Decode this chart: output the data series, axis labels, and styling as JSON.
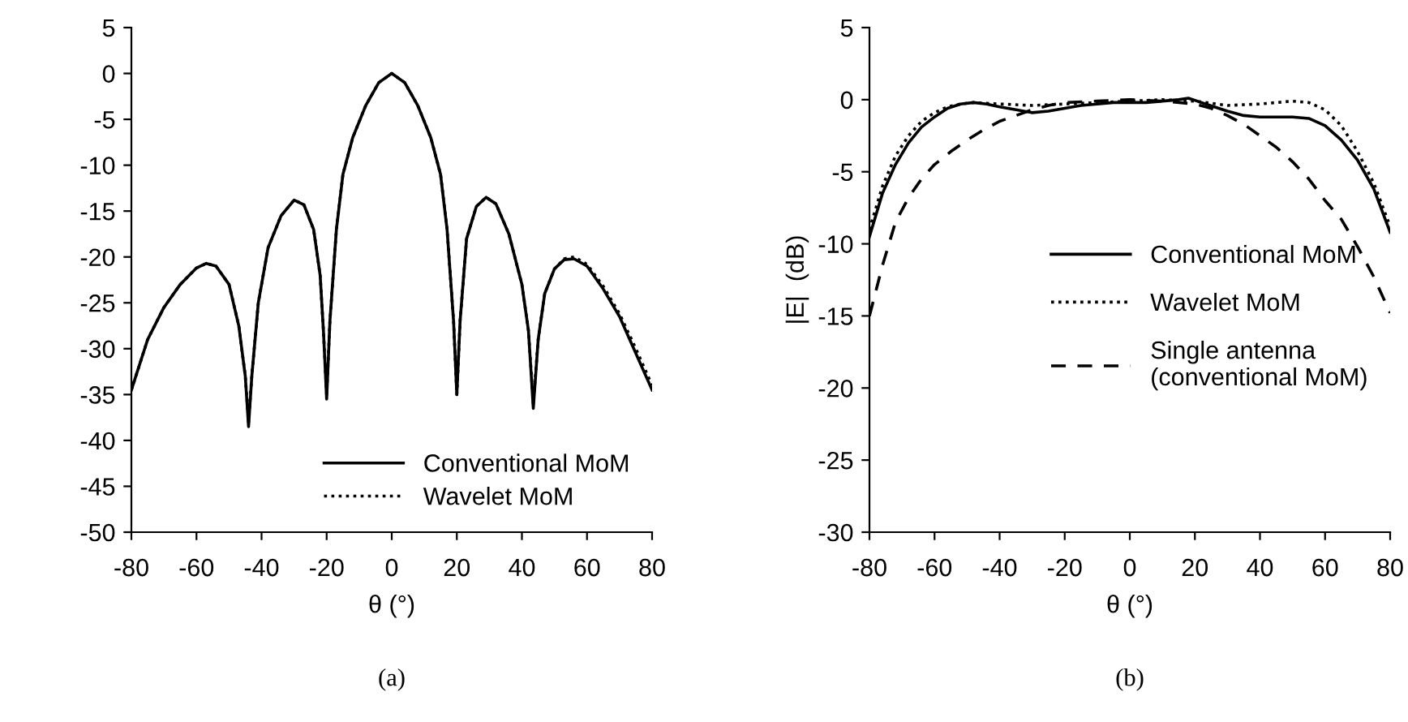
{
  "chart_data": [
    {
      "type": "line",
      "xlabel": "θ (°)",
      "xlim": [
        -80,
        80
      ],
      "xticks": [
        -80,
        -60,
        -40,
        -20,
        0,
        20,
        40,
        60,
        80
      ],
      "ylim": [
        -50,
        5
      ],
      "yticks": [
        -50,
        -45,
        -40,
        -35,
        -30,
        -25,
        -20,
        -15,
        -10,
        -5,
        0,
        5
      ],
      "grid": false,
      "legend": "bottom right",
      "marker": "none",
      "annotations": [
        "(a)"
      ],
      "series": [
        {
          "name": "Conventional MoM",
          "color": "#000000",
          "line_style": "solid",
          "x": [
            -80,
            -75,
            -70,
            -65,
            -60,
            -57,
            -54,
            -50,
            -47,
            -45,
            -44,
            -43,
            -41,
            -38,
            -34,
            -30,
            -27,
            -24,
            -22,
            -21,
            -20,
            -19,
            -17,
            -15,
            -12,
            -8,
            -4,
            0,
            4,
            8,
            12,
            15,
            17,
            19,
            20,
            21,
            23,
            26,
            29,
            32,
            36,
            40,
            42,
            43.5,
            45,
            47,
            50,
            53,
            56,
            60,
            65,
            70,
            75,
            80
          ],
          "values": [
            -34.5,
            -29,
            -25.5,
            -23,
            -21.2,
            -20.7,
            -21,
            -23,
            -27.5,
            -33,
            -38.5,
            -33,
            -25,
            -19,
            -15.5,
            -13.8,
            -14.3,
            -17,
            -22,
            -28,
            -35.5,
            -27,
            -17,
            -11,
            -7,
            -3.5,
            -1,
            0,
            -1,
            -3.5,
            -7,
            -11,
            -17,
            -27,
            -35,
            -27,
            -18,
            -14.5,
            -13.5,
            -14.2,
            -17.5,
            -23,
            -28,
            -36.5,
            -29,
            -24,
            -21.3,
            -20.3,
            -20.2,
            -21,
            -23.5,
            -26.5,
            -30.5,
            -34.5
          ]
        },
        {
          "name": "Wavelet MoM",
          "color": "#000000",
          "line_style": "dotted",
          "x": [
            -80,
            -75,
            -70,
            -65,
            -60,
            -57,
            -54,
            -50,
            -47,
            -45,
            -44,
            -43,
            -41,
            -38,
            -34,
            -30,
            -27,
            -24,
            -22,
            -21,
            -20,
            -19,
            -17,
            -15,
            -12,
            -8,
            -4,
            0,
            4,
            8,
            12,
            15,
            17,
            19,
            20,
            21,
            23,
            26,
            29,
            32,
            36,
            40,
            42,
            43.5,
            45,
            47,
            50,
            53,
            56,
            60,
            65,
            70,
            75,
            80
          ],
          "values": [
            -34.5,
            -29,
            -25.5,
            -23,
            -21.2,
            -20.7,
            -21,
            -23,
            -27.5,
            -33,
            -38,
            -33,
            -25,
            -19,
            -15.5,
            -13.8,
            -14.3,
            -17,
            -22,
            -28,
            -35,
            -27,
            -17,
            -11,
            -7,
            -3.5,
            -1,
            0,
            -1,
            -3.5,
            -7,
            -11,
            -17,
            -27,
            -35,
            -27,
            -18,
            -14.5,
            -13.5,
            -14.2,
            -17.5,
            -23,
            -28,
            -36,
            -29,
            -24,
            -21.3,
            -20.2,
            -20,
            -20.8,
            -23.2,
            -26.2,
            -30,
            -34
          ]
        }
      ]
    },
    {
      "type": "line",
      "xlabel": "θ (°)",
      "ylabel": "|E|  (dB)",
      "xlim": [
        -80,
        80
      ],
      "xticks": [
        -80,
        -60,
        -40,
        -20,
        0,
        20,
        40,
        60,
        80
      ],
      "ylim": [
        -30,
        5
      ],
      "yticks": [
        -30,
        -25,
        -20,
        -15,
        -10,
        -5,
        0,
        5
      ],
      "grid": false,
      "legend": "right",
      "marker": "none",
      "annotations": [
        "(b)"
      ],
      "series": [
        {
          "name": "Conventional MoM",
          "color": "#000000",
          "line_style": "solid",
          "x": [
            -80,
            -76,
            -72,
            -68,
            -64,
            -60,
            -56,
            -52,
            -48,
            -44,
            -40,
            -35,
            -30,
            -25,
            -20,
            -15,
            -10,
            -5,
            0,
            5,
            10,
            15,
            18,
            22,
            26,
            30,
            35,
            40,
            45,
            50,
            55,
            60,
            65,
            70,
            75,
            78,
            80
          ],
          "values": [
            -9.5,
            -6.5,
            -4.5,
            -3,
            -1.9,
            -1.2,
            -0.6,
            -0.3,
            -0.2,
            -0.3,
            -0.5,
            -0.7,
            -0.9,
            -0.8,
            -0.6,
            -0.4,
            -0.3,
            -0.2,
            -0.2,
            -0.2,
            -0.1,
            0,
            0.1,
            -0.2,
            -0.5,
            -0.8,
            -1.1,
            -1.2,
            -1.2,
            -1.2,
            -1.3,
            -1.8,
            -2.8,
            -4.2,
            -6.2,
            -8,
            -9.2
          ]
        },
        {
          "name": "Wavelet MoM",
          "color": "#000000",
          "line_style": "dotted",
          "x": [
            -80,
            -76,
            -72,
            -68,
            -64,
            -60,
            -56,
            -52,
            -48,
            -40,
            -30,
            -20,
            -10,
            0,
            10,
            20,
            30,
            40,
            45,
            50,
            55,
            60,
            65,
            70,
            75,
            80
          ],
          "values": [
            -9,
            -6,
            -3.9,
            -2.5,
            -1.5,
            -0.9,
            -0.5,
            -0.3,
            -0.2,
            -0.3,
            -0.4,
            -0.3,
            -0.2,
            -0.1,
            0,
            -0.1,
            -0.4,
            -0.3,
            -0.2,
            -0.1,
            -0.2,
            -0.7,
            -1.8,
            -3.6,
            -5.8,
            -8.8
          ]
        },
        {
          "name": "Single antenna\n(conventional MoM)",
          "color": "#000000",
          "line_style": "dashed",
          "x": [
            -80,
            -76,
            -72,
            -68,
            -64,
            -60,
            -55,
            -50,
            -45,
            -40,
            -35,
            -30,
            -25,
            -20,
            -10,
            0,
            10,
            20,
            25,
            30,
            35,
            40,
            45,
            50,
            55,
            60,
            65,
            70,
            75,
            80
          ],
          "values": [
            -15,
            -11.5,
            -8.5,
            -6.8,
            -5.5,
            -4.5,
            -3.6,
            -2.8,
            -2.1,
            -1.5,
            -1.1,
            -0.7,
            -0.4,
            -0.2,
            -0.1,
            0,
            -0.1,
            -0.3,
            -0.6,
            -1.1,
            -1.7,
            -2.5,
            -3.3,
            -4.3,
            -5.5,
            -7,
            -8.3,
            -10.2,
            -12.3,
            -14.8
          ]
        }
      ]
    }
  ]
}
